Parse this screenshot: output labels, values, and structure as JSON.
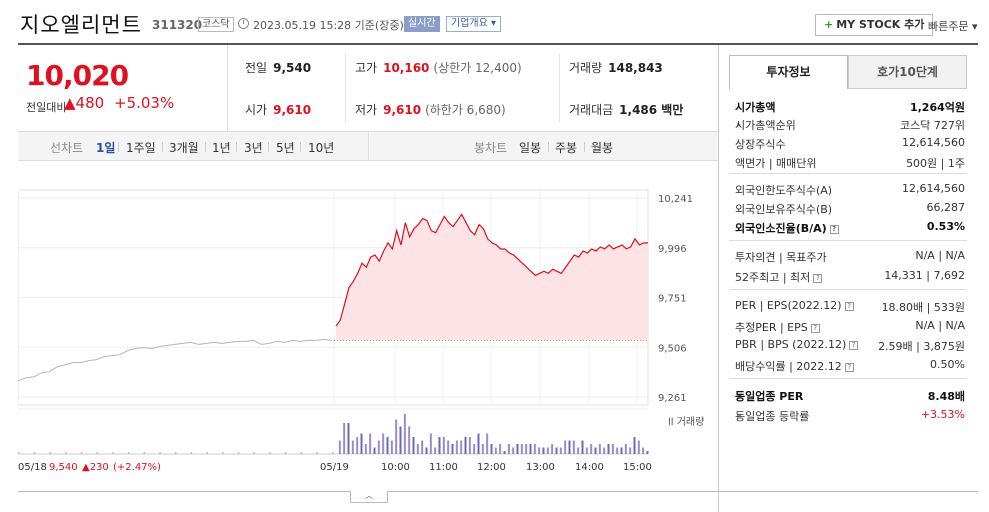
{
  "header": {
    "name": "지오엘리먼트",
    "code": "311320",
    "market": "코스닥",
    "timestamp": "2023.05.19 15:28 기준(장중)",
    "realtime_label": "실시간",
    "company_label": "기업개요 ▾",
    "mystock_label": "MY STOCK 추가",
    "mystock_plus": "+",
    "quick_order_label": "빠른주문 ▾"
  },
  "price": {
    "current": "10,020",
    "change_label": "전일대비",
    "change_amount": "▲480",
    "change_pct": "+5.03%"
  },
  "quote": {
    "prev_close_label": "전일",
    "prev_close": "9,540",
    "high_label": "고가",
    "high": "10,160",
    "upper_limit": "(상한가 12,400)",
    "volume_label": "거래량",
    "volume": "148,843",
    "open_label": "시가",
    "open": "9,610",
    "low_label": "저가",
    "low": "9,610",
    "lower_limit": "(하한가 6,680)",
    "amount_label": "거래대금",
    "amount": "1,486 백만"
  },
  "periods": {
    "line_label": "선차트",
    "line_items": [
      "1일",
      "1주일",
      "3개월",
      "1년",
      "3년",
      "5년",
      "10년"
    ],
    "active": "1일",
    "candle_label": "봉차트",
    "candle_items": [
      "일봉",
      "주봉",
      "월봉"
    ]
  },
  "chart_data": {
    "type": "line",
    "y_ticks": [
      "10,241",
      "9,996",
      "9,751",
      "9,506",
      "9,261"
    ],
    "ylim": [
      9261,
      10241
    ],
    "prev_close": 9540,
    "x_ticks": [
      "05/18",
      "05/19",
      "10:00",
      "11:00",
      "12:00",
      "13:00",
      "14:00",
      "15:00"
    ],
    "volume_label": "거래량",
    "prev_day_summary": {
      "date": "05/18",
      "close": "9,540",
      "change": "▲230",
      "pct": "(+2.47%)"
    },
    "prev_day_series": [
      9340,
      9355,
      9360,
      9380,
      9385,
      9410,
      9420,
      9430,
      9430,
      9440,
      9445,
      9460,
      9465,
      9470,
      9490,
      9500,
      9505,
      9500,
      9510,
      9515,
      9520,
      9525,
      9530,
      9520,
      9525,
      9530,
      9525,
      9530,
      9535,
      9535,
      9540,
      9520,
      9525,
      9535,
      9530,
      9540,
      9535,
      9540,
      9540,
      9545,
      9540
    ],
    "today_series": [
      9610,
      9640,
      9720,
      9800,
      9830,
      9870,
      9920,
      9900,
      9950,
      9960,
      9930,
      9980,
      10020,
      9990,
      10080,
      10010,
      10120,
      10050,
      10090,
      10110,
      10140,
      10130,
      10080,
      10070,
      10110,
      10150,
      10120,
      10100,
      10130,
      10160,
      10120,
      10080,
      10060,
      10110,
      10090,
      10040,
      10020,
      10010,
      9990,
      9990,
      9970,
      9960,
      9940,
      9920,
      9900,
      9880,
      9860,
      9870,
      9880,
      9870,
      9890,
      9880,
      9870,
      9900,
      9930,
      9960,
      9950,
      9980,
      9970,
      9990,
      9980,
      10000,
      9990,
      10010,
      9990,
      10000,
      10010,
      9990,
      10000,
      10040,
      10010,
      10020,
      10020
    ],
    "grid": true
  },
  "info": {
    "tab_invest": "투자정보",
    "tab_orderbook": "호가10단계",
    "rows": [
      {
        "k": "시가총액",
        "v": "1,264억원",
        "bold": true
      },
      {
        "k": "시가총액순위",
        "v": "코스닥 727위",
        "arrow": true
      },
      {
        "k": "상장주식수",
        "v": "12,614,560"
      },
      {
        "k": "액면가 | 매매단위",
        "v": "500원 | 1주"
      },
      {
        "k": "외국인한도주식수(A)",
        "v": "12,614,560"
      },
      {
        "k": "외국인보유주식수(B)",
        "v": "66,287"
      },
      {
        "k": "외국인소진율(B/A)",
        "v": "0.53%",
        "bold": true,
        "q": true
      },
      {
        "k": "투자의견 | 목표주가",
        "v": "N/A | N/A"
      },
      {
        "k": "52주최고 | 최저",
        "v": "14,331 | 7,692",
        "q": true
      },
      {
        "k": "PER | EPS(2022.12)",
        "v": "18.80배 | 533원",
        "q": true
      },
      {
        "k": "추정PER | EPS",
        "v": "N/A | N/A",
        "q": true
      },
      {
        "k": "PBR | BPS (2022.12)",
        "v": "2.59배 | 3,875원",
        "q": true
      },
      {
        "k": "배당수익률 | 2022.12",
        "v": "0.50%",
        "q": true
      },
      {
        "k": "동일업종 PER",
        "v": "8.48배",
        "bold": true,
        "arrow": true
      },
      {
        "k": "동일업종 등락률",
        "v": "+3.53%",
        "red": true,
        "arrow": true
      }
    ]
  },
  "collapse_label": "︿",
  "colors": {
    "up": "#e01020",
    "accent": "#2b4ea8",
    "fill": "#fde3e5"
  }
}
